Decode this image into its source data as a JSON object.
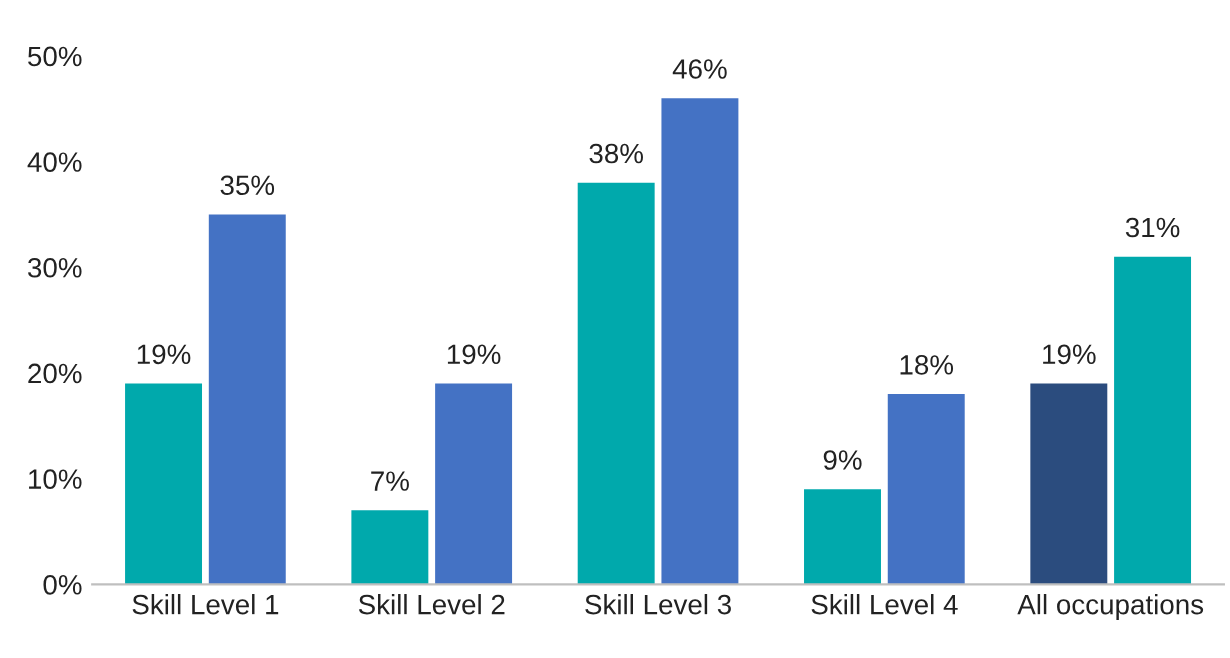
{
  "chart_data": {
    "type": "bar",
    "categories": [
      "Skill Level 1",
      "Skill Level 2",
      "Skill Level 3",
      "Skill Level 4",
      "All occupations"
    ],
    "series": [
      {
        "colors": [
          "#00a9ac",
          "#00a9ac",
          "#00a9ac",
          "#00a9ac",
          "#2b4c7e"
        ],
        "values": [
          19,
          7,
          38,
          9,
          19
        ],
        "value_labels": [
          "19%",
          "7%",
          "38%",
          "9%",
          "19%"
        ]
      },
      {
        "colors": [
          "#4472c4",
          "#4472c4",
          "#4472c4",
          "#4472c4",
          "#00a9ac"
        ],
        "values": [
          35,
          19,
          46,
          18,
          31
        ],
        "value_labels": [
          "35%",
          "19%",
          "46%",
          "18%",
          "31%"
        ]
      }
    ],
    "ylim": [
      0,
      50
    ],
    "yticks": [
      {
        "value": 0,
        "label": "0%"
      },
      {
        "value": 10,
        "label": "10%"
      },
      {
        "value": 20,
        "label": "20%"
      },
      {
        "value": 30,
        "label": "30%"
      },
      {
        "value": 40,
        "label": "40%"
      },
      {
        "value": 50,
        "label": "50%"
      }
    ],
    "grid": false,
    "legend": false
  }
}
